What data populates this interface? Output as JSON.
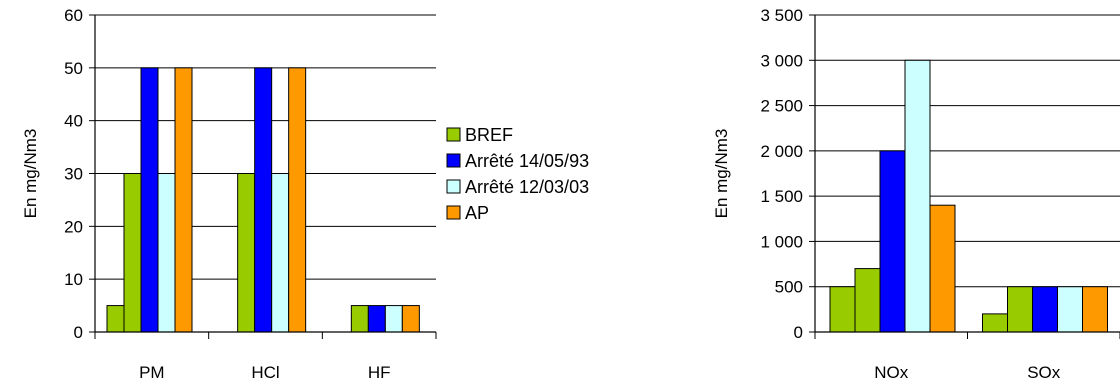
{
  "colors": {
    "BREF": "#99cc00",
    "Arrêté 14/05/93": "#0000ff",
    "Arrêté 12/03/03": "#ccffff",
    "AP": "#ff9900"
  },
  "legend": {
    "items": [
      "BREF",
      "Arrêté 14/05/93",
      "Arrêté 12/03/03",
      "AP"
    ]
  },
  "chart_data": [
    {
      "type": "bar",
      "title": "",
      "xlabel": "",
      "ylabel": "En mg/Nm3",
      "ylim": [
        0,
        60
      ],
      "yticks": [
        0,
        10,
        20,
        30,
        40,
        50,
        60
      ],
      "ytick_labels": [
        "0",
        "10",
        "20",
        "30",
        "40",
        "50",
        "60"
      ],
      "grid": true,
      "legend_position": "right",
      "categories": [
        "PM",
        "HCl",
        "HF"
      ],
      "groups": [
        {
          "category": "PM",
          "bars": [
            {
              "series": "BREF",
              "value": 5
            },
            {
              "series": "BREF",
              "value": 30
            },
            {
              "series": "Arrêté 14/05/93",
              "value": 50
            },
            {
              "series": "Arrêté 12/03/03",
              "value": 30
            },
            {
              "series": "AP",
              "value": 50
            }
          ]
        },
        {
          "category": "HCl",
          "bars": [
            {
              "series": "BREF",
              "value": 0
            },
            {
              "series": "BREF",
              "value": 30
            },
            {
              "series": "Arrêté 14/05/93",
              "value": 50
            },
            {
              "series": "Arrêté 12/03/03",
              "value": 30
            },
            {
              "series": "AP",
              "value": 50
            }
          ]
        },
        {
          "category": "HF",
          "bars": [
            {
              "series": "BREF",
              "value": 0
            },
            {
              "series": "BREF",
              "value": 5
            },
            {
              "series": "Arrêté 14/05/93",
              "value": 5
            },
            {
              "series": "Arrêté 12/03/03",
              "value": 5
            },
            {
              "series": "AP",
              "value": 5
            }
          ]
        }
      ]
    },
    {
      "type": "bar",
      "title": "",
      "xlabel": "",
      "ylabel": "En mg/Nm3",
      "ylim": [
        0,
        3500
      ],
      "yticks": [
        0,
        500,
        1000,
        1500,
        2000,
        2500,
        3000,
        3500
      ],
      "ytick_labels": [
        "0",
        "500",
        "1 000",
        "1 500",
        "2 000",
        "2 500",
        "3 000",
        "3 500"
      ],
      "grid": true,
      "categories": [
        "NOx",
        "SOx"
      ],
      "groups": [
        {
          "category": "NOx",
          "bars": [
            {
              "series": "BREF",
              "value": 500
            },
            {
              "series": "BREF",
              "value": 700
            },
            {
              "series": "Arrêté 14/05/93",
              "value": 2000
            },
            {
              "series": "Arrêté 12/03/03",
              "value": 3000
            },
            {
              "series": "AP",
              "value": 1400
            }
          ]
        },
        {
          "category": "SOx",
          "bars": [
            {
              "series": "BREF",
              "value": 200
            },
            {
              "series": "BREF",
              "value": 500
            },
            {
              "series": "Arrêté 14/05/93",
              "value": 500
            },
            {
              "series": "Arrêté 12/03/03",
              "value": 500
            },
            {
              "series": "AP",
              "value": 500
            }
          ]
        }
      ]
    }
  ]
}
